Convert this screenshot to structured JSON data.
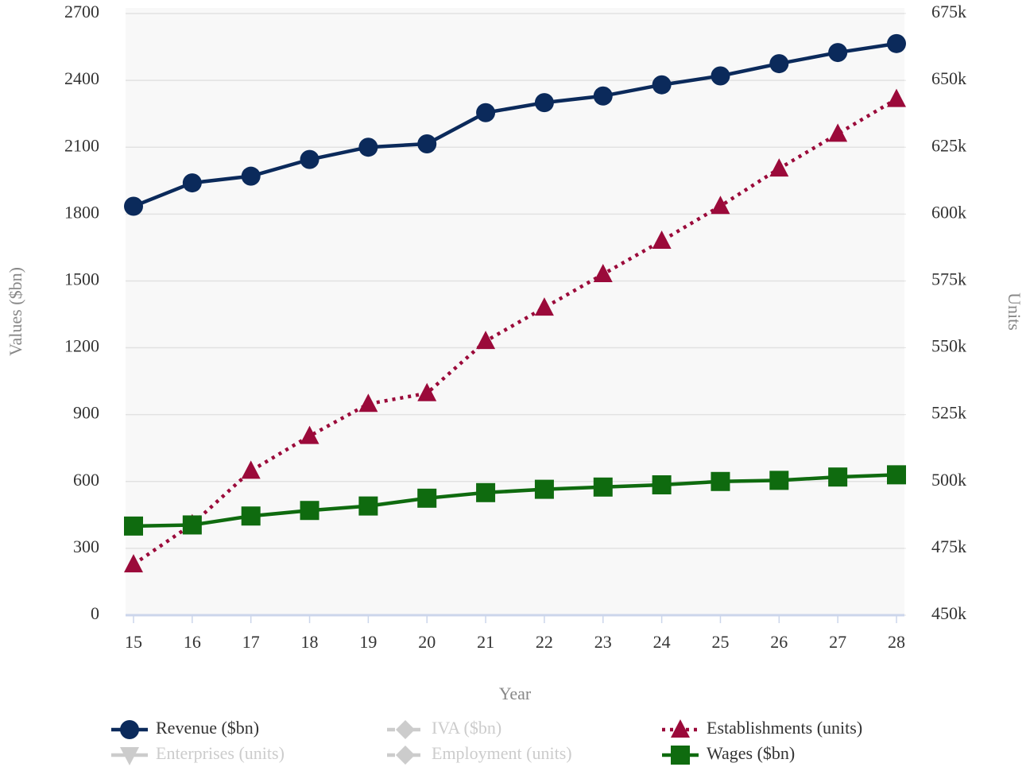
{
  "chart_data": {
    "type": "line",
    "categories": [
      "15",
      "16",
      "17",
      "18",
      "19",
      "20",
      "21",
      "22",
      "23",
      "24",
      "25",
      "26",
      "27",
      "28"
    ],
    "x_label": "Year",
    "y_label": "Values ($bn)",
    "y2_label": "Units",
    "ylim": [
      0,
      2700
    ],
    "yticks": [
      0,
      300,
      600,
      900,
      1200,
      1500,
      1800,
      2100,
      2400,
      2700
    ],
    "y2lim": [
      450000,
      675000
    ],
    "y2ticks": [
      {
        "value": 450000,
        "label": "450k"
      },
      {
        "value": 475000,
        "label": "475k"
      },
      {
        "value": 500000,
        "label": "500k"
      },
      {
        "value": 525000,
        "label": "525k"
      },
      {
        "value": 550000,
        "label": "550k"
      },
      {
        "value": 575000,
        "label": "575k"
      },
      {
        "value": 600000,
        "label": "600k"
      },
      {
        "value": 625000,
        "label": "625k"
      },
      {
        "value": 650000,
        "label": "650k"
      },
      {
        "value": 675000,
        "label": "675k"
      }
    ],
    "grid": true,
    "legend": "bottom",
    "series": [
      {
        "name": "Revenue ($bn)",
        "color": "#0b2a5b",
        "marker": "circle",
        "dash": "solid",
        "visible": true,
        "values": [
          1835,
          1940,
          1970,
          2045,
          2100,
          2115,
          2255,
          2300,
          2330,
          2380,
          2420,
          2475,
          2525,
          2565
        ]
      },
      {
        "name": "IVA ($bn)",
        "color": "#cccccc",
        "marker": "diamond",
        "dash": "dashed",
        "visible": false
      },
      {
        "name": "Establishments (units)",
        "color": "#9b0a3a",
        "marker": "triangle",
        "dash": "dotted",
        "visible": true,
        "axis": "y2",
        "values": [
          469000,
          484000,
          504000,
          517000,
          529000,
          533000,
          552500,
          565000,
          577500,
          590000,
          603000,
          617000,
          630000,
          643000
        ]
      },
      {
        "name": "Enterprises (units)",
        "color": "#cccccc",
        "marker": "triangle-down",
        "dash": "solid",
        "visible": false
      },
      {
        "name": "Employment (units)",
        "color": "#cccccc",
        "marker": "diamond",
        "dash": "dashed",
        "visible": false
      },
      {
        "name": "Wages ($bn)",
        "color": "#0f6b0f",
        "marker": "square",
        "dash": "solid",
        "visible": true,
        "values": [
          400,
          405,
          445,
          470,
          490,
          525,
          550,
          565,
          575,
          585,
          600,
          605,
          620,
          630
        ]
      }
    ]
  }
}
